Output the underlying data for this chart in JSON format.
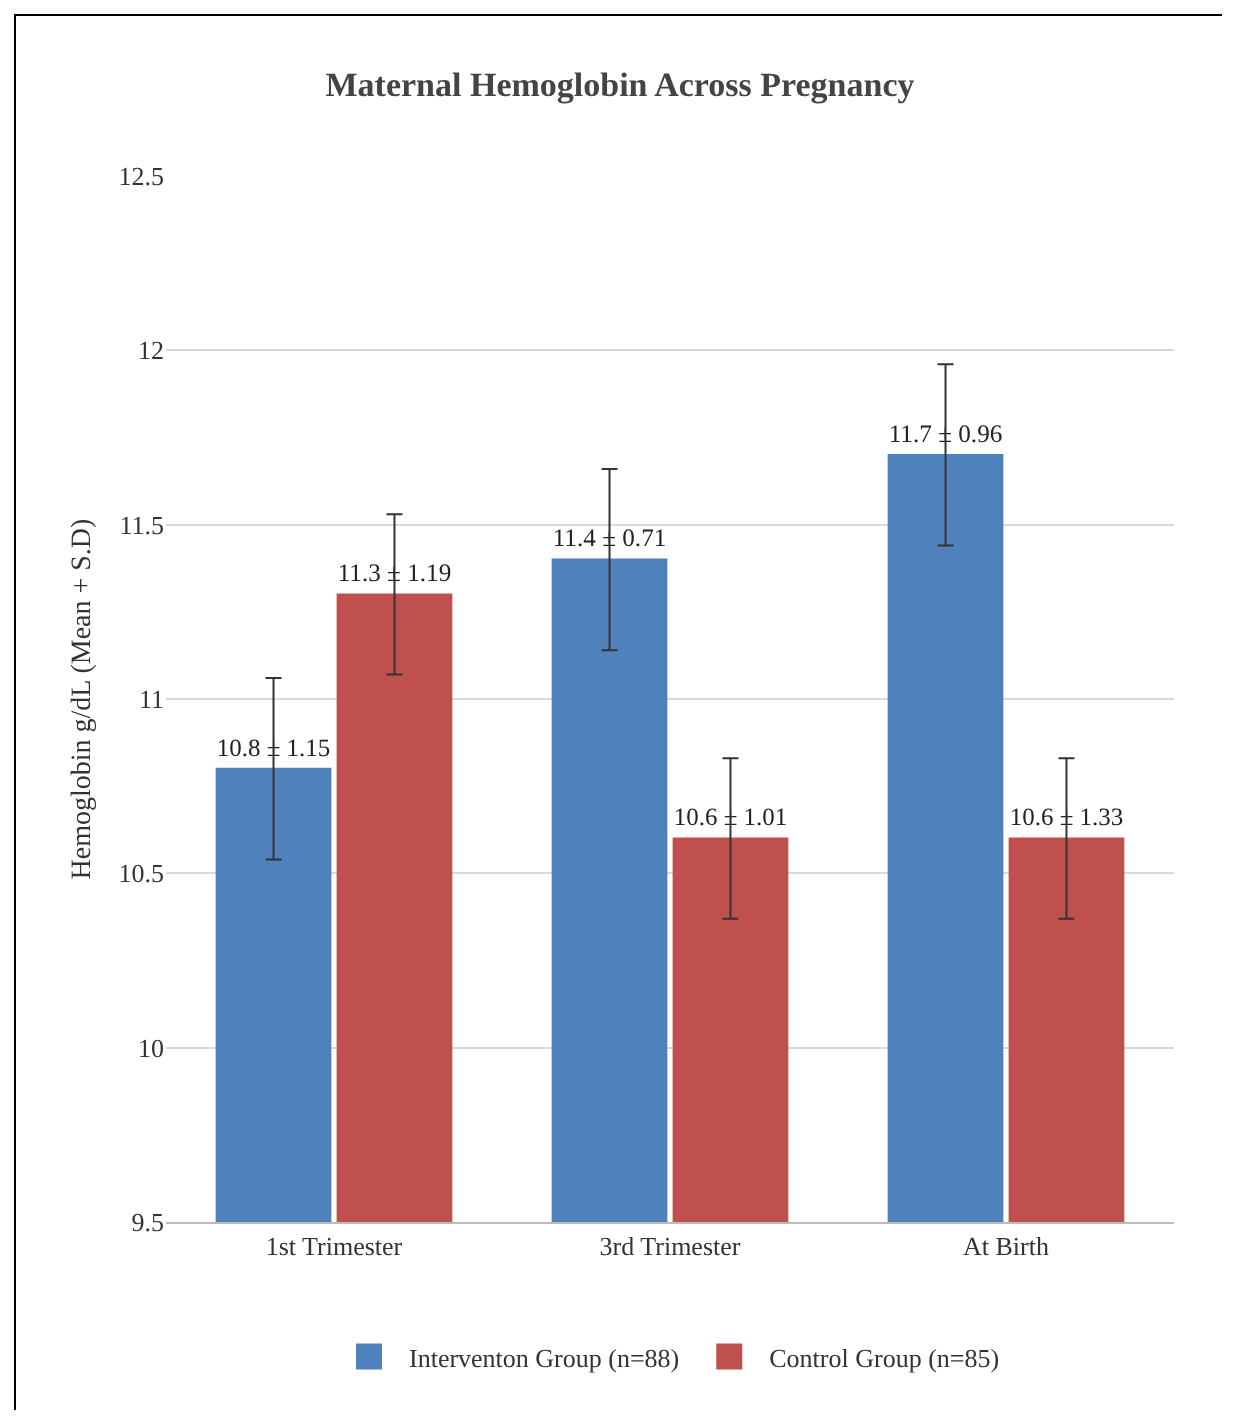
{
  "chart_data": {
    "type": "bar",
    "title": "Maternal Hemoglobin Across Pregnancy",
    "ylabel": "Hemoglobin g/dL (Mean + S.D)",
    "categories": [
      "1st Trimester",
      "3rd Trimester",
      "At Birth"
    ],
    "series": [
      {
        "name": "Interventon Group (n=88)",
        "color": "#4f81bd",
        "values": [
          10.8,
          11.4,
          11.7
        ],
        "errors": [
          0.26,
          0.26,
          0.26
        ],
        "value_labels": [
          "10.8 ± 1.15",
          "11.4 ± 0.71",
          "11.7 ± 0.96"
        ]
      },
      {
        "name": "Control Group (n=85)",
        "color": "#c0504d",
        "values": [
          11.3,
          10.6,
          10.6
        ],
        "errors": [
          0.23,
          0.23,
          0.23
        ],
        "value_labels": [
          "11.3 ± 1.19",
          "10.6 ± 1.01",
          "10.6 ± 1.33"
        ]
      }
    ],
    "ylim": [
      9.5,
      12.5
    ],
    "yticks": [
      9.5,
      10,
      10.5,
      11,
      11.5,
      12,
      12.5
    ],
    "grid": "y",
    "legend": "bottom"
  }
}
